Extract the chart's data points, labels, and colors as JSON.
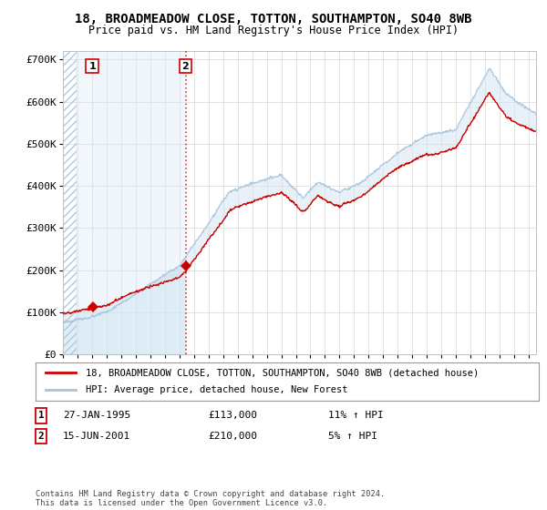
{
  "title": "18, BROADMEADOW CLOSE, TOTTON, SOUTHAMPTON, SO40 8WB",
  "subtitle": "Price paid vs. HM Land Registry's House Price Index (HPI)",
  "legend_line1": "18, BROADMEADOW CLOSE, TOTTON, SOUTHAMPTON, SO40 8WB (detached house)",
  "legend_line2": "HPI: Average price, detached house, New Forest",
  "footnote": "Contains HM Land Registry data © Crown copyright and database right 2024.\nThis data is licensed under the Open Government Licence v3.0.",
  "sale1_label": "1",
  "sale1_date": "27-JAN-1995",
  "sale1_price": "£113,000",
  "sale1_hpi": "11% ↑ HPI",
  "sale2_label": "2",
  "sale2_date": "15-JUN-2001",
  "sale2_price": "£210,000",
  "sale2_hpi": "5% ↑ HPI",
  "sale1_x": 1995.07,
  "sale1_y": 113000,
  "sale2_x": 2001.46,
  "sale2_y": 210000,
  "hpi_color": "#a8c4dd",
  "hpi_fill_color": "#d0e4f0",
  "price_color": "#cc0000",
  "sale_marker_color": "#cc0000",
  "ylim": [
    0,
    720000
  ],
  "xlim_start": 1993.0,
  "xlim_end": 2025.5,
  "yticks": [
    0,
    100000,
    200000,
    300000,
    400000,
    500000,
    600000,
    700000
  ],
  "ytick_labels": [
    "£0",
    "£100K",
    "£200K",
    "£300K",
    "£400K",
    "£500K",
    "£600K",
    "£700K"
  ],
  "xticks": [
    1993,
    1994,
    1995,
    1996,
    1997,
    1998,
    1999,
    2000,
    2001,
    2002,
    2003,
    2004,
    2005,
    2006,
    2007,
    2008,
    2009,
    2010,
    2011,
    2012,
    2013,
    2014,
    2015,
    2016,
    2017,
    2018,
    2019,
    2020,
    2021,
    2022,
    2023,
    2024,
    2025
  ],
  "fig_width": 6.0,
  "fig_height": 5.6,
  "dpi": 100
}
